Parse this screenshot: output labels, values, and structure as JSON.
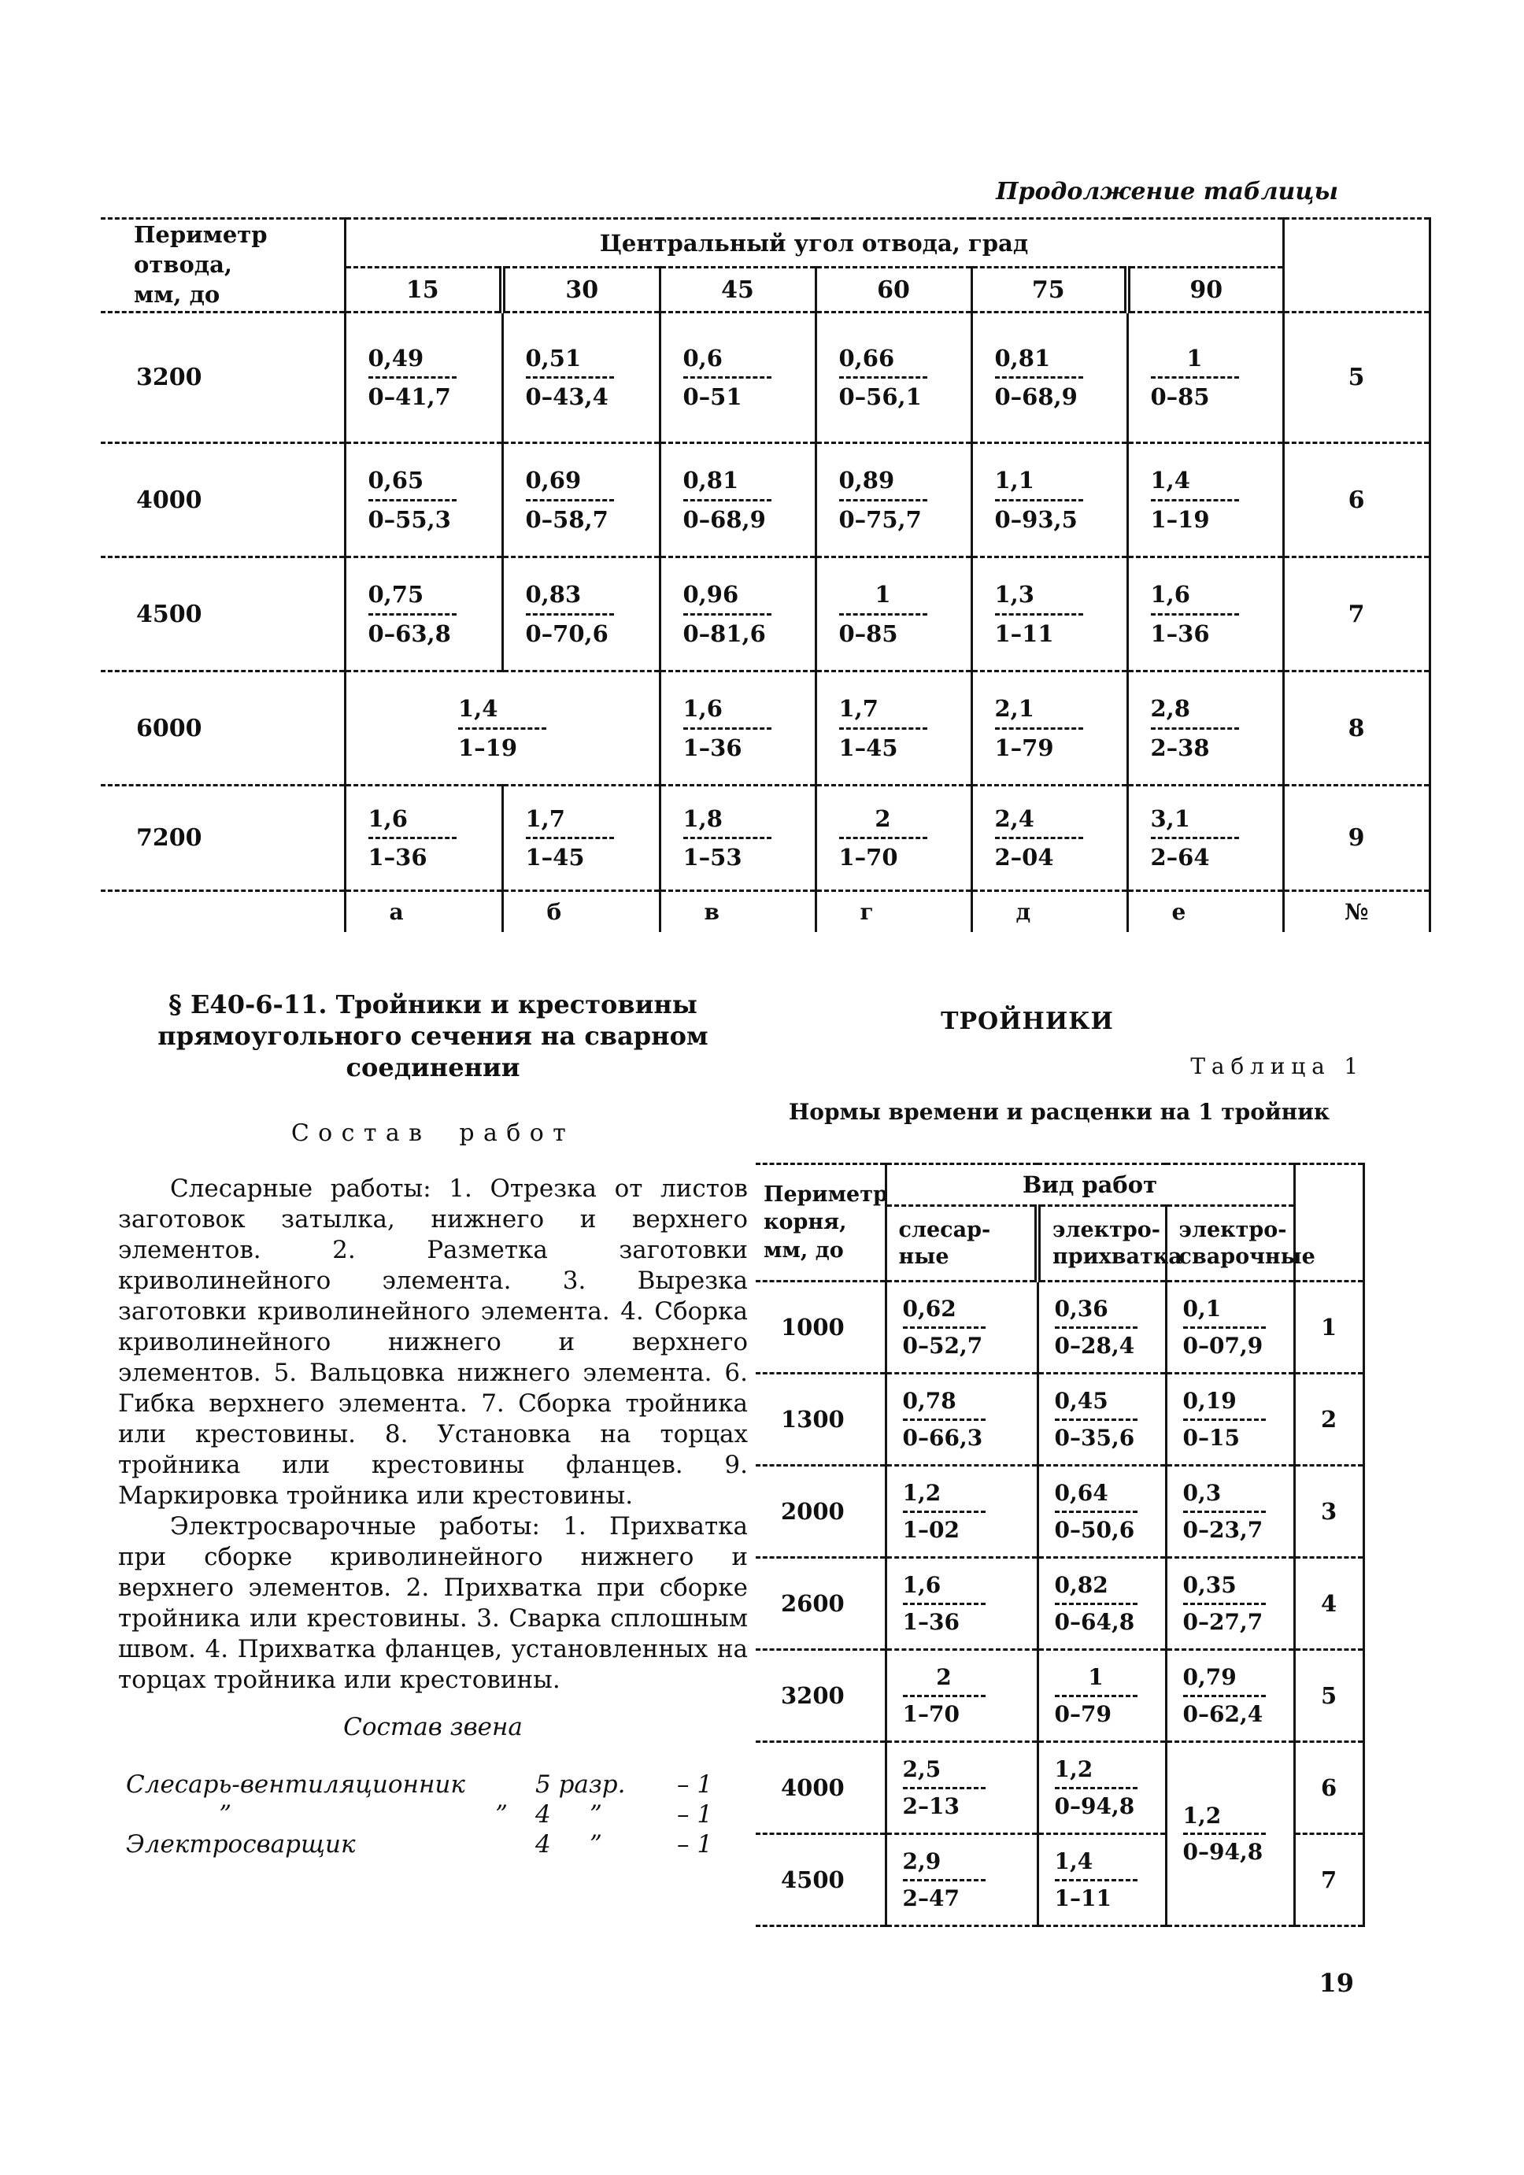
{
  "page": {
    "number": "19"
  },
  "continuation_label": "Продолжение таблицы",
  "top_table": {
    "corner_header": "Периметр\nотвода,\nмм, до",
    "span_header": "Центральный угол отвода, град",
    "angle_columns": [
      "15",
      "30",
      "45",
      "60",
      "75",
      "90"
    ],
    "rows": [
      {
        "perimeter": "3200",
        "cells": [
          {
            "n": "0,49",
            "d": "0–41,7"
          },
          {
            "n": "0,51",
            "d": "0–43,4"
          },
          {
            "n": "0,6",
            "d": "0–51"
          },
          {
            "n": "0,66",
            "d": "0–56,1"
          },
          {
            "n": "0,81",
            "d": "0–68,9"
          },
          {
            "n": "1",
            "d": "0–85"
          }
        ],
        "num": "5"
      },
      {
        "perimeter": "4000",
        "cells": [
          {
            "n": "0,65",
            "d": "0–55,3"
          },
          {
            "n": "0,69",
            "d": "0–58,7"
          },
          {
            "n": "0,81",
            "d": "0–68,9"
          },
          {
            "n": "0,89",
            "d": "0–75,7"
          },
          {
            "n": "1,1",
            "d": "0–93,5"
          },
          {
            "n": "1,4",
            "d": "1–19"
          }
        ],
        "num": "6"
      },
      {
        "perimeter": "4500",
        "cells": [
          {
            "n": "0,75",
            "d": "0–63,8"
          },
          {
            "n": "0,83",
            "d": "0–70,6"
          },
          {
            "n": "0,96",
            "d": "0–81,6"
          },
          {
            "n": "1",
            "d": "0–85"
          },
          {
            "n": "1,3",
            "d": "1–11"
          },
          {
            "n": "1,6",
            "d": "1–36"
          }
        ],
        "num": "7"
      },
      {
        "perimeter": "6000",
        "cells": [
          {
            "n": "1,4",
            "d": "1–19",
            "colspan": 2
          },
          {
            "n": "1,6",
            "d": "1–36"
          },
          {
            "n": "1,7",
            "d": "1–45"
          },
          {
            "n": "2,1",
            "d": "1–79"
          },
          {
            "n": "2,8",
            "d": "2–38"
          }
        ],
        "num": "8"
      },
      {
        "perimeter": "7200",
        "cells": [
          {
            "n": "1,6",
            "d": "1–36"
          },
          {
            "n": "1,7",
            "d": "1–45"
          },
          {
            "n": "1,8",
            "d": "1–53"
          },
          {
            "n": "2",
            "d": "1–70"
          },
          {
            "n": "2,4",
            "d": "2–04"
          },
          {
            "n": "3,1",
            "d": "2–64"
          }
        ],
        "num": "9"
      }
    ],
    "column_letters": [
      "а",
      "б",
      "в",
      "г",
      "д",
      "е"
    ],
    "num_symbol": "№"
  },
  "section": {
    "heading": "§ Е40-6-11. Тройники и крестовины\nпрямоугольного сечения на сварном\nсоединении",
    "work_heading": "Состав работ",
    "para1": "Слесарные работы: 1. Отрезка от листов заготовок затылка, нижнего и верхнего элементов. 2. Разметка заготовки криволинейного элемента. 3. Вырезка заготовки криволинейного элемента. 4. Сборка криволинейного нижнего и верхнего элементов. 5. Вальцовка нижнего элемента. 6. Гибка верхнего элемента. 7. Сборка тройника или крестовины. 8. Установка на торцах тройника или крестовины фланцев. 9. Маркировка тройника или крестовины.",
    "para2": "Электросварочные работы: 1. Прихватка при сборке криволинейного нижнего и верхнего элементов. 2. Прихватка при сборке тройника или крестовины. 3. Сварка сплошным швом. 4. Прихватка фланцев, установленных на торцах тройника или крестовины.",
    "crew_heading": "Состав звена",
    "crew": [
      {
        "left": "Слесарь-вентиляционник",
        "mid": "5 разр.",
        "right": "– 1"
      },
      {
        "left": "            ”                                  ”",
        "mid": "4     ”",
        "right": "– 1"
      },
      {
        "left": "Электросварщик",
        "mid": "4     ”",
        "right": "– 1"
      }
    ]
  },
  "bottom_table": {
    "section_title": "ТРОЙНИКИ",
    "table_label": "Таблица 1",
    "caption": "Нормы времени и расценки на 1 тройник",
    "corner_header": "Периметр\nкорня,\nмм, до",
    "span_header": "Вид работ",
    "work_columns": [
      "слесар-\nные",
      "электро-\nприхватка",
      "электро-\nсварочные"
    ],
    "rows": [
      {
        "perimeter": "1000",
        "cells": [
          {
            "n": "0,62",
            "d": "0–52,7"
          },
          {
            "n": "0,36",
            "d": "0–28,4"
          },
          {
            "n": "0,1",
            "d": "0–07,9"
          }
        ],
        "num": "1"
      },
      {
        "perimeter": "1300",
        "cells": [
          {
            "n": "0,78",
            "d": "0–66,3"
          },
          {
            "n": "0,45",
            "d": "0–35,6"
          },
          {
            "n": "0,19",
            "d": "0–15"
          }
        ],
        "num": "2"
      },
      {
        "perimeter": "2000",
        "cells": [
          {
            "n": "1,2",
            "d": "1–02"
          },
          {
            "n": "0,64",
            "d": "0–50,6"
          },
          {
            "n": "0,3",
            "d": "0–23,7"
          }
        ],
        "num": "3"
      },
      {
        "perimeter": "2600",
        "cells": [
          {
            "n": "1,6",
            "d": "1–36"
          },
          {
            "n": "0,82",
            "d": "0–64,8"
          },
          {
            "n": "0,35",
            "d": "0–27,7"
          }
        ],
        "num": "4"
      },
      {
        "perimeter": "3200",
        "cells": [
          {
            "n": "2",
            "d": "1–70"
          },
          {
            "n": "1",
            "d": "0–79"
          },
          {
            "n": "0,79",
            "d": "0–62,4"
          }
        ],
        "num": "5"
      },
      {
        "perimeter": "4000",
        "cells": [
          {
            "n": "2,5",
            "d": "2–13"
          },
          {
            "n": "1,2",
            "d": "0–94,8"
          },
          {
            "n": "1,2",
            "d": "0–94,8",
            "rowspan": 2
          }
        ],
        "num": "6"
      },
      {
        "perimeter": "4500",
        "cells": [
          {
            "n": "2,9",
            "d": "2–47"
          },
          {
            "n": "1,4",
            "d": "1–11"
          }
        ],
        "num": "7"
      }
    ]
  }
}
